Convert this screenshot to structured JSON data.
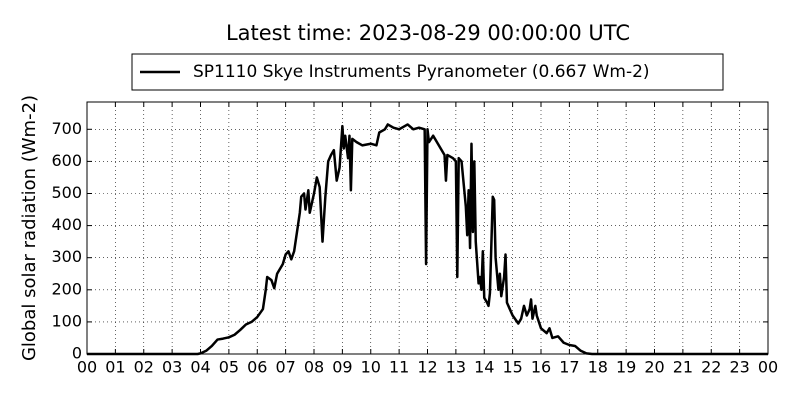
{
  "chart_data": {
    "type": "line",
    "title": "Latest time: 2023-08-29 00:00:00 UTC",
    "y_label": "Global solar radiation (Wm-2)",
    "x": [
      0,
      3.9,
      4.0,
      4.2,
      4.4,
      4.6,
      4.8,
      5.0,
      5.2,
      5.4,
      5.6,
      5.8,
      6.0,
      6.2,
      6.3,
      6.35,
      6.5,
      6.6,
      6.7,
      6.9,
      7.0,
      7.1,
      7.2,
      7.3,
      7.4,
      7.5,
      7.55,
      7.65,
      7.7,
      7.8,
      7.85,
      7.9,
      8.0,
      8.1,
      8.2,
      8.3,
      8.4,
      8.5,
      8.6,
      8.7,
      8.8,
      8.9,
      9.0,
      9.05,
      9.1,
      9.2,
      9.25,
      9.3,
      9.35,
      9.5,
      9.7,
      10.0,
      10.2,
      10.3,
      10.5,
      10.6,
      10.8,
      11.0,
      11.2,
      11.3,
      11.5,
      11.7,
      11.9,
      11.95,
      12.0,
      12.05,
      12.2,
      12.4,
      12.6,
      12.65,
      12.7,
      12.9,
      13.0,
      13.05,
      13.1,
      13.2,
      13.35,
      13.4,
      13.45,
      13.5,
      13.55,
      13.6,
      13.65,
      13.7,
      13.8,
      13.85,
      13.9,
      13.95,
      14.0,
      14.1,
      14.15,
      14.2,
      14.3,
      14.35,
      14.4,
      14.5,
      14.55,
      14.6,
      14.7,
      14.75,
      14.8,
      14.9,
      15.0,
      15.2,
      15.3,
      15.4,
      15.5,
      15.6,
      15.65,
      15.7,
      15.8,
      15.85,
      16.0,
      16.2,
      16.3,
      16.4,
      16.6,
      16.8,
      17.0,
      17.2,
      17.4,
      17.6,
      17.8,
      24
    ],
    "series": [
      {
        "name": "SP1110 Skye Instruments Pyranometer (0.667 Wm-2)",
        "color": "#000000",
        "values": [
          0,
          0,
          2,
          10,
          25,
          45,
          48,
          52,
          60,
          75,
          92,
          100,
          115,
          140,
          200,
          240,
          230,
          205,
          250,
          280,
          310,
          320,
          295,
          320,
          380,
          440,
          490,
          500,
          450,
          510,
          440,
          460,
          500,
          550,
          520,
          350,
          490,
          600,
          620,
          635,
          540,
          580,
          710,
          640,
          680,
          610,
          680,
          510,
          670,
          660,
          650,
          655,
          650,
          690,
          700,
          715,
          705,
          700,
          710,
          715,
          700,
          705,
          700,
          280,
          700,
          660,
          680,
          650,
          620,
          540,
          620,
          610,
          600,
          240,
          610,
          600,
          460,
          370,
          510,
          330,
          655,
          380,
          600,
          350,
          220,
          240,
          200,
          320,
          175,
          160,
          150,
          190,
          490,
          480,
          300,
          200,
          250,
          180,
          240,
          310,
          160,
          140,
          120,
          95,
          110,
          150,
          120,
          140,
          170,
          110,
          150,
          120,
          80,
          65,
          80,
          50,
          55,
          35,
          28,
          25,
          10,
          2,
          0,
          0
        ]
      }
    ],
    "xlim": [
      0,
      24
    ],
    "xticks": [
      {
        "value": 0,
        "label": "00"
      },
      {
        "value": 1,
        "label": "01"
      },
      {
        "value": 2,
        "label": "02"
      },
      {
        "value": 3,
        "label": "03"
      },
      {
        "value": 4,
        "label": "04"
      },
      {
        "value": 5,
        "label": "05"
      },
      {
        "value": 6,
        "label": "06"
      },
      {
        "value": 7,
        "label": "07"
      },
      {
        "value": 8,
        "label": "08"
      },
      {
        "value": 9,
        "label": "09"
      },
      {
        "value": 10,
        "label": "10"
      },
      {
        "value": 11,
        "label": "11"
      },
      {
        "value": 12,
        "label": "12"
      },
      {
        "value": 13,
        "label": "13"
      },
      {
        "value": 14,
        "label": "14"
      },
      {
        "value": 15,
        "label": "15"
      },
      {
        "value": 16,
        "label": "16"
      },
      {
        "value": 17,
        "label": "17"
      },
      {
        "value": 18,
        "label": "18"
      },
      {
        "value": 19,
        "label": "19"
      },
      {
        "value": 20,
        "label": "20"
      },
      {
        "value": 21,
        "label": "21"
      },
      {
        "value": 22,
        "label": "22"
      },
      {
        "value": 23,
        "label": "23"
      },
      {
        "value": 24,
        "label": "00"
      }
    ],
    "ylim": [
      0,
      785
    ],
    "yticks": [
      0,
      100,
      200,
      300,
      400,
      500,
      600,
      700
    ],
    "grid": true,
    "legend_position": "top"
  }
}
